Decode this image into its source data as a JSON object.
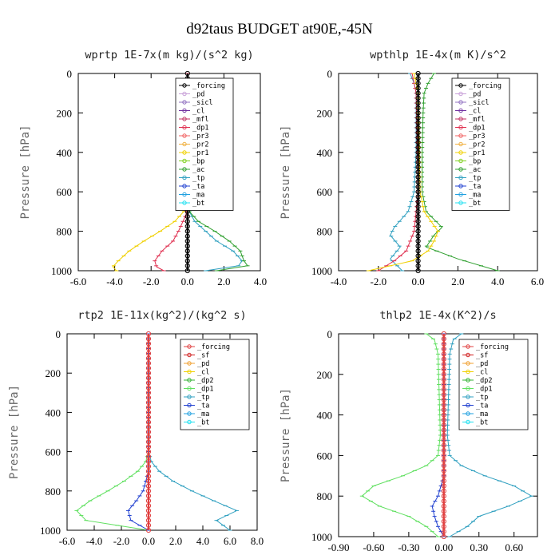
{
  "figure_title": "d92taus  BUDGET at90E,-45N",
  "chart_data": [
    {
      "type": "line",
      "title": "wprtp  1E-7x(m kg)/(s^2 kg)",
      "ylabel": "Pressure [hPa]",
      "xlim": [
        -6.0,
        4.0
      ],
      "ylim": [
        1000,
        0
      ],
      "xticks": [
        "-6.0",
        "-4.0",
        "-2.0",
        "0.0",
        "2.0",
        "4.0"
      ],
      "xtick_values": [
        -6,
        -4,
        -2,
        0,
        2,
        4
      ],
      "yticks": [
        "0",
        "200",
        "400",
        "600",
        "800",
        "1000"
      ],
      "ytick_values": [
        0,
        200,
        400,
        600,
        800,
        1000
      ],
      "legend": [
        "_forcing",
        "_pd",
        "_sicl",
        "_cl",
        "_mfl",
        "_dp1",
        "_pr3",
        "_pr2",
        "_pr1",
        "_bp",
        "_ac",
        "_tp",
        "_ta",
        "_ma",
        "_bt"
      ],
      "legend_colors": [
        "#000000",
        "#c8a0d8",
        "#9070c0",
        "#7030a0",
        "#c03060",
        "#e03050",
        "#f06060",
        "#f0b040",
        "#f0d000",
        "#80d020",
        "#30a030",
        "#30a0c0",
        "#2040d0",
        "#20a0e0",
        "#20e0f0"
      ],
      "series": [
        {
          "name": "_tp",
          "color": "#30a0c0",
          "pressure": [
            0,
            650,
            700,
            750,
            800,
            850,
            900,
            950,
            975,
            1000
          ],
          "values": [
            0,
            0,
            0.1,
            0.4,
            1.0,
            1.6,
            2.5,
            3.0,
            2.8,
            1.0
          ]
        },
        {
          "name": "_ac",
          "color": "#30a030",
          "pressure": [
            0,
            650,
            700,
            750,
            800,
            850,
            900,
            950,
            975,
            1000
          ],
          "values": [
            0,
            0,
            0.1,
            0.6,
            1.5,
            2.3,
            2.9,
            3.1,
            3.3,
            1.6
          ]
        },
        {
          "name": "_pr1",
          "color": "#f0d000",
          "pressure": [
            0,
            650,
            700,
            750,
            800,
            850,
            900,
            950,
            980,
            1000
          ],
          "values": [
            0,
            0,
            -0.2,
            -0.7,
            -1.5,
            -2.4,
            -3.2,
            -3.8,
            -4.1,
            -3.9
          ]
        },
        {
          "name": "_dp1",
          "color": "#e03050",
          "pressure": [
            0,
            680,
            720,
            760,
            800,
            850,
            900,
            950,
            980,
            1000
          ],
          "values": [
            0,
            0,
            -0.1,
            -0.3,
            -0.5,
            -0.8,
            -1.4,
            -1.8,
            -1.7,
            -1.3
          ]
        },
        {
          "name": "_forcing",
          "color": "#000000",
          "pressure": [
            0,
            200,
            400,
            600,
            800,
            1000
          ],
          "values": [
            0,
            0,
            0,
            0,
            0,
            0
          ]
        }
      ]
    },
    {
      "type": "line",
      "title": "wpthlp  1E-4x(m K)/s^2",
      "ylabel": "Pressure [hPa]",
      "xlim": [
        -4.0,
        6.0
      ],
      "ylim": [
        1000,
        0
      ],
      "xticks": [
        "-4.0",
        "-2.0",
        "0.0",
        "2.0",
        "4.0",
        "6.0"
      ],
      "xtick_values": [
        -4,
        -2,
        0,
        2,
        4,
        6
      ],
      "yticks": [
        "0",
        "200",
        "400",
        "600",
        "800",
        "1000"
      ],
      "ytick_values": [
        0,
        200,
        400,
        600,
        800,
        1000
      ],
      "legend": [
        "_forcing",
        "_pd",
        "_sicl",
        "_cl",
        "_mfl",
        "_dp1",
        "_pr3",
        "_pr2",
        "_pr1",
        "_bp",
        "_ac",
        "_tp",
        "_ta",
        "_ma",
        "_bt"
      ],
      "legend_colors": [
        "#000000",
        "#c8a0d8",
        "#9070c0",
        "#7030a0",
        "#c03060",
        "#e03050",
        "#f06060",
        "#f0b040",
        "#f0d000",
        "#80d020",
        "#30a030",
        "#30a0c0",
        "#2040d0",
        "#20a0e0",
        "#20e0f0"
      ],
      "series": [
        {
          "name": "_ac",
          "color": "#30a030",
          "pressure": [
            0,
            50,
            100,
            200,
            400,
            600,
            700,
            780,
            820,
            880,
            940,
            1000
          ],
          "values": [
            0.8,
            0.5,
            0.3,
            0.25,
            0.2,
            0.2,
            0.4,
            1.2,
            0.8,
            0.4,
            2.0,
            4.0
          ]
        },
        {
          "name": "_tp",
          "color": "#30a0c0",
          "pressure": [
            0,
            50,
            100,
            200,
            400,
            600,
            700,
            780,
            820,
            880,
            940,
            1000
          ],
          "values": [
            -0.4,
            -0.2,
            -0.1,
            -0.1,
            -0.1,
            -0.2,
            -0.5,
            -1.2,
            -1.4,
            -0.9,
            -1.4,
            -0.8
          ]
        },
        {
          "name": "_dp1",
          "color": "#e03050",
          "pressure": [
            0,
            100,
            600,
            800,
            900,
            950,
            1000
          ],
          "values": [
            -0.3,
            -0.1,
            0,
            -0.2,
            -0.6,
            -1.2,
            -2.0
          ]
        },
        {
          "name": "_pr1",
          "color": "#f0d000",
          "pressure": [
            0,
            100,
            600,
            700,
            800,
            850,
            900,
            950,
            1000
          ],
          "values": [
            -0.2,
            0,
            0.1,
            0.3,
            1.0,
            0.8,
            0.5,
            -0.3,
            -2.5
          ]
        },
        {
          "name": "_forcing",
          "color": "#000000",
          "pressure": [
            0,
            200,
            400,
            600,
            800,
            1000
          ],
          "values": [
            0,
            0,
            0,
            0,
            0,
            0
          ]
        }
      ]
    },
    {
      "type": "line",
      "title": "rtp2  1E-11x(kg^2)/(kg^2 s)",
      "ylabel": "Pressure [hPa]",
      "xlim": [
        -6.0,
        8.0
      ],
      "ylim": [
        1000,
        0
      ],
      "xticks": [
        "-6.0",
        "-4.0",
        "-2.0",
        "0.0",
        "2.0",
        "4.0",
        "6.0",
        "8.0"
      ],
      "xtick_values": [
        -6,
        -4,
        -2,
        0,
        2,
        4,
        6,
        8
      ],
      "yticks": [
        "0",
        "200",
        "400",
        "600",
        "800",
        "1000"
      ],
      "ytick_values": [
        0,
        200,
        400,
        600,
        800,
        1000
      ],
      "legend": [
        "_forcing",
        "_sf",
        "_pd",
        "_cl",
        "_dp2",
        "_dp1",
        "_tp",
        "_ta",
        "_ma",
        "_bt"
      ],
      "legend_colors": [
        "#e04040",
        "#d02020",
        "#f0a030",
        "#f0d000",
        "#30b030",
        "#60e060",
        "#30a0c0",
        "#2040d0",
        "#20a0e0",
        "#20e0f0"
      ],
      "series": [
        {
          "name": "_dp1",
          "color": "#60e060",
          "pressure": [
            0,
            600,
            650,
            700,
            750,
            800,
            850,
            900,
            950,
            1000
          ],
          "values": [
            0,
            0,
            -0.2,
            -0.8,
            -1.8,
            -3.0,
            -4.3,
            -5.3,
            -4.6,
            0
          ]
        },
        {
          "name": "_tp",
          "color": "#30a0c0",
          "pressure": [
            0,
            600,
            650,
            700,
            750,
            800,
            850,
            900,
            950,
            1000
          ],
          "values": [
            0,
            0,
            0.2,
            0.8,
            1.8,
            3.2,
            4.8,
            6.5,
            5.0,
            6.0
          ]
        },
        {
          "name": "_ta",
          "color": "#2040d0",
          "pressure": [
            0,
            700,
            800,
            850,
            900,
            950,
            1000
          ],
          "values": [
            0,
            0,
            -0.4,
            -0.9,
            -1.5,
            -1.3,
            0
          ]
        },
        {
          "name": "_forcing",
          "color": "#e04040",
          "pressure": [
            0,
            200,
            400,
            600,
            800,
            1000
          ],
          "values": [
            0,
            0,
            0,
            0,
            0,
            0
          ]
        }
      ]
    },
    {
      "type": "line",
      "title": "thlp2  1E-4x(K^2)/s",
      "ylabel": "Pressure [hPa]",
      "xlim": [
        -0.9,
        0.8
      ],
      "ylim": [
        1000,
        0
      ],
      "xticks": [
        "-0.90",
        "-0.60",
        "-0.30",
        "0.00",
        "0.30",
        "0.60"
      ],
      "xtick_values": [
        -0.9,
        -0.6,
        -0.3,
        0,
        0.3,
        0.6
      ],
      "yticks": [
        "0",
        "200",
        "400",
        "600",
        "800",
        "1000"
      ],
      "ytick_values": [
        0,
        200,
        400,
        600,
        800,
        1000
      ],
      "legend": [
        "_forcing",
        "_sf",
        "_pd",
        "_cl",
        "_dp2",
        "_dp1",
        "_tp",
        "_ta",
        "_ma",
        "_bt"
      ],
      "legend_colors": [
        "#e04040",
        "#d02020",
        "#f0a030",
        "#f0d000",
        "#30b030",
        "#60e060",
        "#30a0c0",
        "#2040d0",
        "#20a0e0",
        "#20e0f0"
      ],
      "series": [
        {
          "name": "_dp1",
          "color": "#60e060",
          "pressure": [
            0,
            30,
            100,
            300,
            500,
            600,
            650,
            700,
            750,
            800,
            850,
            900,
            950,
            1000
          ],
          "values": [
            -0.15,
            -0.08,
            -0.05,
            -0.04,
            -0.03,
            -0.05,
            -0.15,
            -0.35,
            -0.6,
            -0.7,
            -0.55,
            -0.3,
            -0.15,
            -0.05
          ]
        },
        {
          "name": "_tp",
          "color": "#30a0c0",
          "pressure": [
            0,
            30,
            100,
            300,
            500,
            600,
            650,
            700,
            750,
            800,
            850,
            900,
            950,
            1000
          ],
          "values": [
            0.15,
            0.08,
            0.05,
            0.04,
            0.03,
            0.05,
            0.15,
            0.35,
            0.6,
            0.75,
            0.55,
            0.3,
            0.2,
            0.05
          ]
        },
        {
          "name": "_ta",
          "color": "#2040d0",
          "pressure": [
            0,
            700,
            800,
            850,
            900,
            950,
            1000
          ],
          "values": [
            0,
            0,
            -0.05,
            -0.1,
            -0.08,
            -0.05,
            0
          ]
        },
        {
          "name": "_forcing",
          "color": "#e04040",
          "pressure": [
            0,
            200,
            400,
            600,
            800,
            1000
          ],
          "values": [
            0,
            0,
            0,
            0,
            0,
            0
          ]
        }
      ]
    }
  ]
}
